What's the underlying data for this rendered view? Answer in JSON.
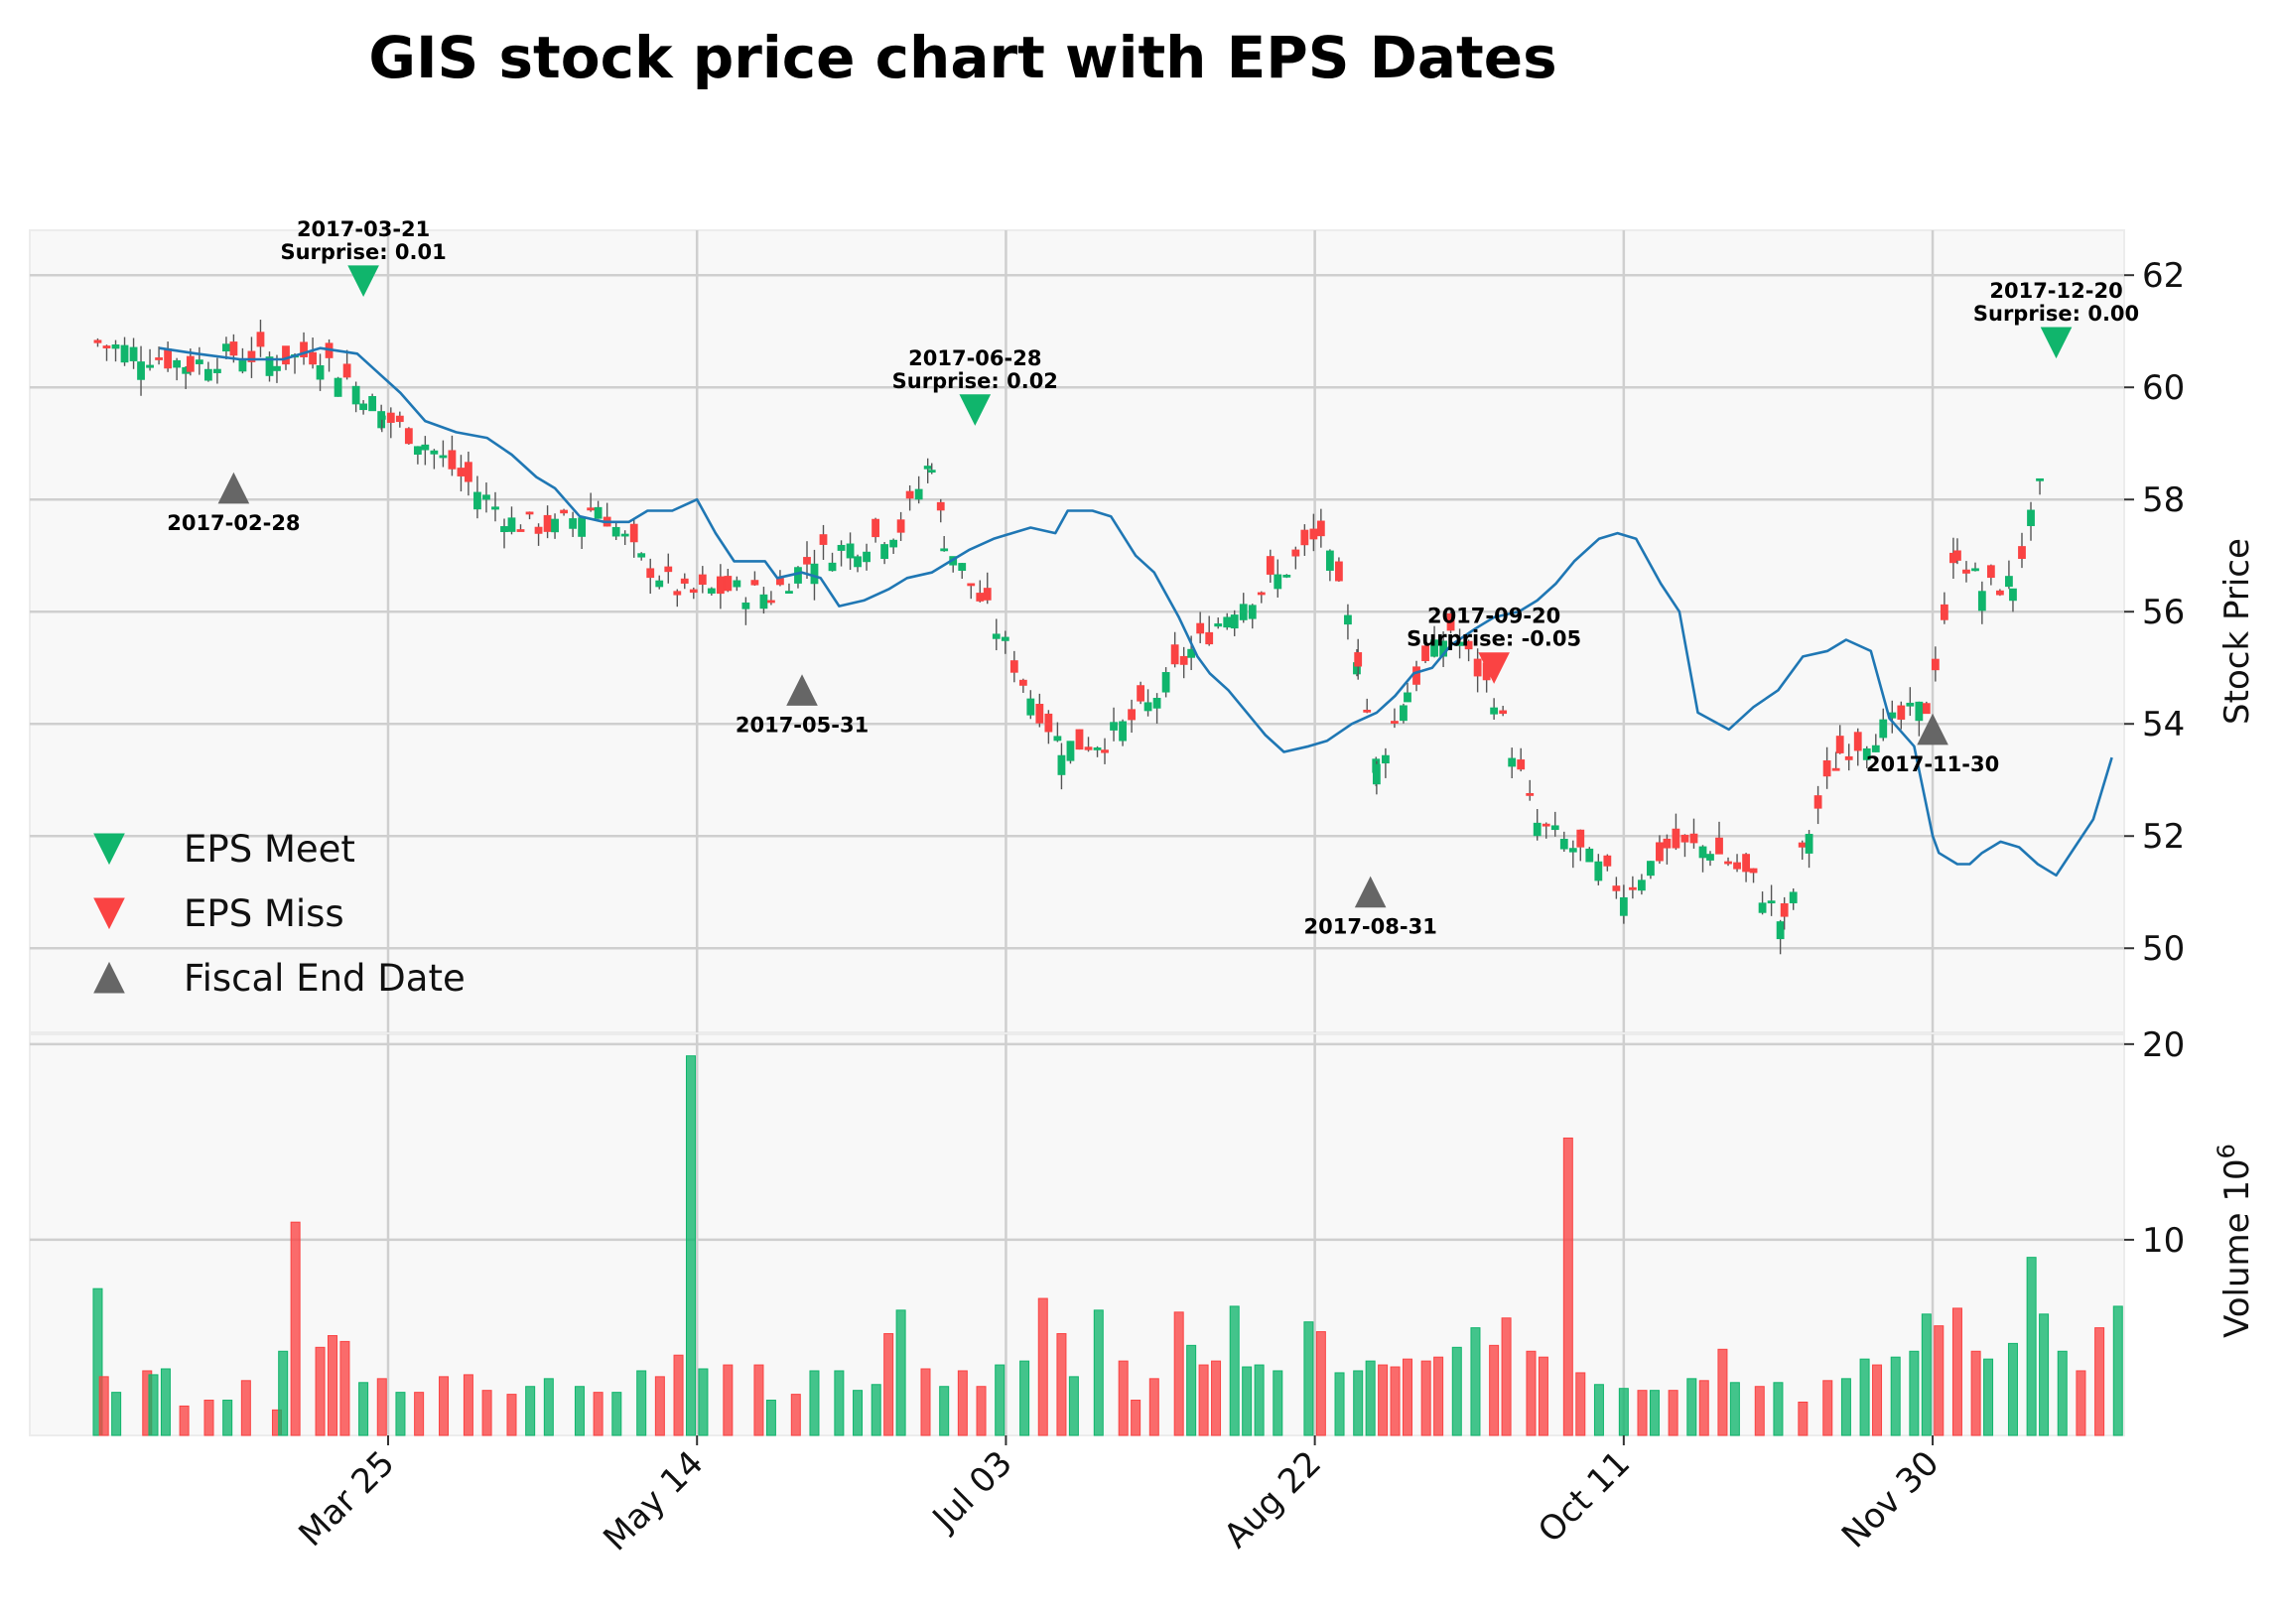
{
  "chart_data": {
    "type": "candlestick",
    "title": "GIS stock price chart with EPS Dates",
    "ylabel_price": "Stock Price",
    "ylabel_volume": "Volume",
    "ylabel_volume_exp": "10",
    "ylabel_volume_sup": "6",
    "price_ylim": [
      48.5,
      62.8
    ],
    "price_yticks": [
      50,
      52,
      54,
      56,
      58,
      60,
      62
    ],
    "volume_ylim": [
      0,
      20.5
    ],
    "volume_yticks": [
      10,
      20
    ],
    "x_range": [
      "2017-01-26",
      "2017-12-31"
    ],
    "x_ticks": [
      {
        "date": "2017-03-25",
        "label": "Mar 25"
      },
      {
        "date": "2017-05-14",
        "label": "May 14"
      },
      {
        "date": "2017-07-03",
        "label": "Jul 03"
      },
      {
        "date": "2017-08-22",
        "label": "Aug 22"
      },
      {
        "date": "2017-10-11",
        "label": "Oct 11"
      },
      {
        "date": "2017-11-30",
        "label": "Nov 30"
      }
    ],
    "legend": {
      "position": "center-left",
      "items": [
        {
          "label": "EPS Meet",
          "marker": "triangle-down",
          "color": "#10b56c"
        },
        {
          "label": "EPS Miss",
          "marker": "triangle-down",
          "color": "#fa4343"
        },
        {
          "label": "Fiscal End Date",
          "marker": "triangle-up",
          "color": "#666666"
        }
      ]
    },
    "price_path": [
      [
        "2017-02-06",
        60.8
      ],
      [
        "2017-02-13",
        60.6
      ],
      [
        "2017-02-21",
        60.4
      ],
      [
        "2017-02-28",
        60.6
      ],
      [
        "2017-03-07",
        60.5
      ],
      [
        "2017-03-14",
        60.6
      ],
      [
        "2017-03-21",
        59.9
      ],
      [
        "2017-03-24",
        59.5
      ],
      [
        "2017-03-31",
        59.0
      ],
      [
        "2017-04-07",
        58.3
      ],
      [
        "2017-04-14",
        57.6
      ],
      [
        "2017-04-21",
        57.5
      ],
      [
        "2017-04-28",
        57.9
      ],
      [
        "2017-05-05",
        56.9
      ],
      [
        "2017-05-12",
        56.3
      ],
      [
        "2017-05-19",
        56.4
      ],
      [
        "2017-05-26",
        56.3
      ],
      [
        "2017-06-02",
        57.0
      ],
      [
        "2017-06-09",
        57.2
      ],
      [
        "2017-06-16",
        57.5
      ],
      [
        "2017-06-21",
        58.7
      ],
      [
        "2017-06-23",
        57.3
      ],
      [
        "2017-06-30",
        56.0
      ],
      [
        "2017-07-07",
        54.5
      ],
      [
        "2017-07-12",
        53.6
      ],
      [
        "2017-07-19",
        53.7
      ],
      [
        "2017-07-26",
        54.3
      ],
      [
        "2017-08-02",
        55.3
      ],
      [
        "2017-08-09",
        56.1
      ],
      [
        "2017-08-16",
        56.6
      ],
      [
        "2017-08-23",
        57.4
      ],
      [
        "2017-08-29",
        55.2
      ],
      [
        "2017-09-01",
        53.2
      ],
      [
        "2017-09-06",
        54.6
      ],
      [
        "2017-09-13",
        55.7
      ],
      [
        "2017-09-20",
        54.5
      ],
      [
        "2017-09-27",
        52.2
      ],
      [
        "2017-10-04",
        51.7
      ],
      [
        "2017-10-11",
        51.0
      ],
      [
        "2017-10-18",
        51.8
      ],
      [
        "2017-10-25",
        51.8
      ],
      [
        "2017-11-01",
        51.2
      ],
      [
        "2017-11-06",
        50.4
      ],
      [
        "2017-11-10",
        52.1
      ],
      [
        "2017-11-15",
        53.5
      ],
      [
        "2017-11-22",
        53.9
      ],
      [
        "2017-11-29",
        54.3
      ],
      [
        "2017-12-04",
        57.1
      ],
      [
        "2017-12-08",
        56.4
      ],
      [
        "2017-12-13",
        56.5
      ],
      [
        "2017-12-18",
        58.4
      ]
    ],
    "moving_average": [
      [
        "2017-02-16",
        60.7
      ],
      [
        "2017-02-22",
        60.6
      ],
      [
        "2017-03-01",
        60.5
      ],
      [
        "2017-03-08",
        60.5
      ],
      [
        "2017-03-14",
        60.7
      ],
      [
        "2017-03-20",
        60.6
      ],
      [
        "2017-03-23",
        60.3
      ],
      [
        "2017-03-27",
        59.9
      ],
      [
        "2017-03-31",
        59.4
      ],
      [
        "2017-04-05",
        59.2
      ],
      [
        "2017-04-10",
        59.1
      ],
      [
        "2017-04-14",
        58.8
      ],
      [
        "2017-04-18",
        58.4
      ],
      [
        "2017-04-21",
        58.2
      ],
      [
        "2017-04-25",
        57.7
      ],
      [
        "2017-04-29",
        57.6
      ],
      [
        "2017-05-03",
        57.6
      ],
      [
        "2017-05-06",
        57.8
      ],
      [
        "2017-05-10",
        57.8
      ],
      [
        "2017-05-14",
        58.0
      ],
      [
        "2017-05-17",
        57.4
      ],
      [
        "2017-05-20",
        56.9
      ],
      [
        "2017-05-25",
        56.9
      ],
      [
        "2017-05-27",
        56.6
      ],
      [
        "2017-05-31",
        56.7
      ],
      [
        "2017-06-03",
        56.6
      ],
      [
        "2017-06-06",
        56.1
      ],
      [
        "2017-06-10",
        56.2
      ],
      [
        "2017-06-14",
        56.4
      ],
      [
        "2017-06-17",
        56.6
      ],
      [
        "2017-06-21",
        56.7
      ],
      [
        "2017-06-24",
        56.9
      ],
      [
        "2017-06-27",
        57.1
      ],
      [
        "2017-07-01",
        57.3
      ],
      [
        "2017-07-04",
        57.4
      ],
      [
        "2017-07-07",
        57.5
      ],
      [
        "2017-07-11",
        57.4
      ],
      [
        "2017-07-13",
        57.8
      ],
      [
        "2017-07-17",
        57.8
      ],
      [
        "2017-07-20",
        57.7
      ],
      [
        "2017-07-24",
        57.0
      ],
      [
        "2017-07-27",
        56.7
      ],
      [
        "2017-07-31",
        55.9
      ],
      [
        "2017-08-03",
        55.2
      ],
      [
        "2017-08-05",
        54.9
      ],
      [
        "2017-08-08",
        54.6
      ],
      [
        "2017-08-11",
        54.2
      ],
      [
        "2017-08-14",
        53.8
      ],
      [
        "2017-08-17",
        53.5
      ],
      [
        "2017-08-21",
        53.6
      ],
      [
        "2017-08-24",
        53.7
      ],
      [
        "2017-08-28",
        54.0
      ],
      [
        "2017-09-01",
        54.2
      ],
      [
        "2017-09-04",
        54.5
      ],
      [
        "2017-09-07",
        54.9
      ],
      [
        "2017-09-10",
        55.0
      ],
      [
        "2017-09-13",
        55.4
      ],
      [
        "2017-09-17",
        55.7
      ],
      [
        "2017-09-20",
        55.9
      ],
      [
        "2017-09-24",
        56.0
      ],
      [
        "2017-09-27",
        56.2
      ],
      [
        "2017-09-30",
        56.5
      ],
      [
        "2017-10-03",
        56.9
      ],
      [
        "2017-10-07",
        57.3
      ],
      [
        "2017-10-10",
        57.4
      ],
      [
        "2017-10-13",
        57.3
      ],
      [
        "2017-10-17",
        56.5
      ],
      [
        "2017-10-20",
        56.0
      ],
      [
        "2017-10-23",
        54.2
      ],
      [
        "2017-10-28",
        53.9
      ],
      [
        "2017-11-01",
        54.3
      ],
      [
        "2017-11-05",
        54.6
      ],
      [
        "2017-11-09",
        55.2
      ],
      [
        "2017-11-13",
        55.3
      ],
      [
        "2017-11-16",
        55.5
      ],
      [
        "2017-11-20",
        55.3
      ],
      [
        "2017-11-23",
        54.1
      ],
      [
        "2017-11-27",
        53.6
      ],
      [
        "2017-11-30",
        52.0
      ],
      [
        "2017-12-01",
        51.7
      ],
      [
        "2017-12-04",
        51.5
      ],
      [
        "2017-12-06",
        51.5
      ],
      [
        "2017-12-08",
        51.7
      ],
      [
        "2017-12-11",
        51.9
      ],
      [
        "2017-12-14",
        51.8
      ],
      [
        "2017-12-17",
        51.5
      ],
      [
        "2017-12-20",
        51.3
      ],
      [
        "2017-12-23",
        51.8
      ],
      [
        "2017-12-26",
        52.3
      ],
      [
        "2017-12-29",
        53.4
      ]
    ],
    "volume": [
      [
        "2017-02-06",
        7.5,
        "up"
      ],
      [
        "2017-02-07",
        3.0,
        "down"
      ],
      [
        "2017-02-09",
        2.2,
        "up"
      ],
      [
        "2017-02-14",
        3.3,
        "down"
      ],
      [
        "2017-02-15",
        3.1,
        "up"
      ],
      [
        "2017-02-17",
        3.4,
        "up"
      ],
      [
        "2017-02-20",
        1.5,
        "down"
      ],
      [
        "2017-02-24",
        1.8,
        "down"
      ],
      [
        "2017-02-27",
        1.8,
        "up"
      ],
      [
        "2017-03-02",
        2.8,
        "down"
      ],
      [
        "2017-03-07",
        1.3,
        "down"
      ],
      [
        "2017-03-08",
        4.3,
        "up"
      ],
      [
        "2017-03-10",
        10.9,
        "down"
      ],
      [
        "2017-03-14",
        4.5,
        "down"
      ],
      [
        "2017-03-16",
        5.1,
        "down"
      ],
      [
        "2017-03-18",
        4.8,
        "down"
      ],
      [
        "2017-03-21",
        2.7,
        "up"
      ],
      [
        "2017-03-24",
        2.9,
        "down"
      ],
      [
        "2017-03-27",
        2.2,
        "up"
      ],
      [
        "2017-03-30",
        2.2,
        "down"
      ],
      [
        "2017-04-03",
        3.0,
        "down"
      ],
      [
        "2017-04-07",
        3.1,
        "down"
      ],
      [
        "2017-04-10",
        2.3,
        "down"
      ],
      [
        "2017-04-14",
        2.1,
        "down"
      ],
      [
        "2017-04-17",
        2.5,
        "up"
      ],
      [
        "2017-04-20",
        2.9,
        "up"
      ],
      [
        "2017-04-25",
        2.5,
        "up"
      ],
      [
        "2017-04-28",
        2.2,
        "down"
      ],
      [
        "2017-05-01",
        2.2,
        "up"
      ],
      [
        "2017-05-05",
        3.3,
        "up"
      ],
      [
        "2017-05-08",
        3.0,
        "down"
      ],
      [
        "2017-05-11",
        4.1,
        "down"
      ],
      [
        "2017-05-13",
        19.4,
        "up"
      ],
      [
        "2017-05-15",
        3.4,
        "up"
      ],
      [
        "2017-05-19",
        3.6,
        "down"
      ],
      [
        "2017-05-24",
        3.6,
        "down"
      ],
      [
        "2017-05-26",
        1.8,
        "up"
      ],
      [
        "2017-05-30",
        2.1,
        "down"
      ],
      [
        "2017-06-02",
        3.3,
        "up"
      ],
      [
        "2017-06-06",
        3.3,
        "up"
      ],
      [
        "2017-06-09",
        2.3,
        "up"
      ],
      [
        "2017-06-12",
        2.6,
        "up"
      ],
      [
        "2017-06-14",
        5.2,
        "down"
      ],
      [
        "2017-06-16",
        6.4,
        "up"
      ],
      [
        "2017-06-20",
        3.4,
        "down"
      ],
      [
        "2017-06-23",
        2.5,
        "up"
      ],
      [
        "2017-06-26",
        3.3,
        "down"
      ],
      [
        "2017-06-29",
        2.5,
        "down"
      ],
      [
        "2017-07-02",
        3.6,
        "up"
      ],
      [
        "2017-07-06",
        3.8,
        "up"
      ],
      [
        "2017-07-09",
        7.0,
        "down"
      ],
      [
        "2017-07-12",
        5.2,
        "down"
      ],
      [
        "2017-07-14",
        3.0,
        "up"
      ],
      [
        "2017-07-18",
        6.4,
        "up"
      ],
      [
        "2017-07-22",
        3.8,
        "down"
      ],
      [
        "2017-07-24",
        1.8,
        "down"
      ],
      [
        "2017-07-27",
        2.9,
        "down"
      ],
      [
        "2017-07-31",
        6.3,
        "down"
      ],
      [
        "2017-08-02",
        4.6,
        "up"
      ],
      [
        "2017-08-04",
        3.6,
        "down"
      ],
      [
        "2017-08-06",
        3.8,
        "down"
      ],
      [
        "2017-08-09",
        6.6,
        "up"
      ],
      [
        "2017-08-11",
        3.5,
        "up"
      ],
      [
        "2017-08-13",
        3.6,
        "up"
      ],
      [
        "2017-08-16",
        3.3,
        "up"
      ],
      [
        "2017-08-21",
        5.8,
        "up"
      ],
      [
        "2017-08-23",
        5.3,
        "down"
      ],
      [
        "2017-08-26",
        3.2,
        "up"
      ],
      [
        "2017-08-29",
        3.3,
        "up"
      ],
      [
        "2017-08-31",
        3.8,
        "up"
      ],
      [
        "2017-09-02",
        3.6,
        "down"
      ],
      [
        "2017-09-04",
        3.5,
        "down"
      ],
      [
        "2017-09-06",
        3.9,
        "down"
      ],
      [
        "2017-09-09",
        3.8,
        "down"
      ],
      [
        "2017-09-11",
        4.0,
        "down"
      ],
      [
        "2017-09-14",
        4.5,
        "up"
      ],
      [
        "2017-09-17",
        5.5,
        "up"
      ],
      [
        "2017-09-20",
        4.6,
        "down"
      ],
      [
        "2017-09-22",
        6.0,
        "down"
      ],
      [
        "2017-09-26",
        4.3,
        "down"
      ],
      [
        "2017-09-28",
        4.0,
        "down"
      ],
      [
        "2017-10-02",
        15.2,
        "down"
      ],
      [
        "2017-10-04",
        3.2,
        "down"
      ],
      [
        "2017-10-07",
        2.6,
        "up"
      ],
      [
        "2017-10-11",
        2.4,
        "up"
      ],
      [
        "2017-10-14",
        2.3,
        "down"
      ],
      [
        "2017-10-16",
        2.3,
        "up"
      ],
      [
        "2017-10-19",
        2.3,
        "down"
      ],
      [
        "2017-10-22",
        2.9,
        "up"
      ],
      [
        "2017-10-24",
        2.8,
        "down"
      ],
      [
        "2017-10-27",
        4.4,
        "down"
      ],
      [
        "2017-10-29",
        2.7,
        "up"
      ],
      [
        "2017-11-02",
        2.5,
        "down"
      ],
      [
        "2017-11-05",
        2.7,
        "up"
      ],
      [
        "2017-11-09",
        1.7,
        "down"
      ],
      [
        "2017-11-13",
        2.8,
        "down"
      ],
      [
        "2017-11-16",
        2.9,
        "up"
      ],
      [
        "2017-11-19",
        3.9,
        "up"
      ],
      [
        "2017-11-21",
        3.6,
        "down"
      ],
      [
        "2017-11-24",
        4.0,
        "up"
      ],
      [
        "2017-11-27",
        4.3,
        "up"
      ],
      [
        "2017-11-29",
        6.2,
        "up"
      ],
      [
        "2017-12-01",
        5.6,
        "down"
      ],
      [
        "2017-12-04",
        6.5,
        "down"
      ],
      [
        "2017-12-07",
        4.3,
        "down"
      ],
      [
        "2017-12-09",
        3.9,
        "up"
      ],
      [
        "2017-12-13",
        4.7,
        "up"
      ],
      [
        "2017-12-16",
        9.1,
        "up"
      ],
      [
        "2017-12-18",
        6.2,
        "up"
      ],
      [
        "2017-12-21",
        4.3,
        "up"
      ],
      [
        "2017-12-24",
        3.3,
        "down"
      ],
      [
        "2017-12-27",
        5.5,
        "down"
      ],
      [
        "2017-12-30",
        6.6,
        "up"
      ]
    ],
    "eps_markers": [
      {
        "type": "meet",
        "date": "2017-03-21",
        "y": 61.9,
        "label_date": "2017-03-21",
        "label_surprise": "Surprise: 0.01",
        "label_pos": "above"
      },
      {
        "type": "meet",
        "date": "2017-06-28",
        "y": 59.6,
        "label_date": "2017-06-28",
        "label_surprise": "Surprise: 0.02",
        "label_pos": "above"
      },
      {
        "type": "miss",
        "date": "2017-09-20",
        "y": 55.0,
        "label_date": "2017-09-20",
        "label_surprise": "Surprise: -0.05",
        "label_pos": "above"
      },
      {
        "type": "meet",
        "date": "2017-12-20",
        "y": 60.8,
        "label_date": "2017-12-20",
        "label_surprise": "Surprise: 0.00",
        "label_pos": "above"
      }
    ],
    "fiscal_markers": [
      {
        "date": "2017-02-28",
        "y": 58.2,
        "label": "2017-02-28"
      },
      {
        "date": "2017-05-31",
        "y": 54.6,
        "label": "2017-05-31"
      },
      {
        "date": "2017-08-31",
        "y": 51.0,
        "label": "2017-08-31"
      },
      {
        "date": "2017-11-30",
        "y": 53.9,
        "label": "2017-11-30"
      }
    ],
    "colors": {
      "up": "#10b56c",
      "down": "#fa4343",
      "ma_line": "#1f77b4",
      "fiscal": "#666666",
      "panel_bg": "#f8f8f8",
      "grid": "#cfcfcf"
    }
  }
}
